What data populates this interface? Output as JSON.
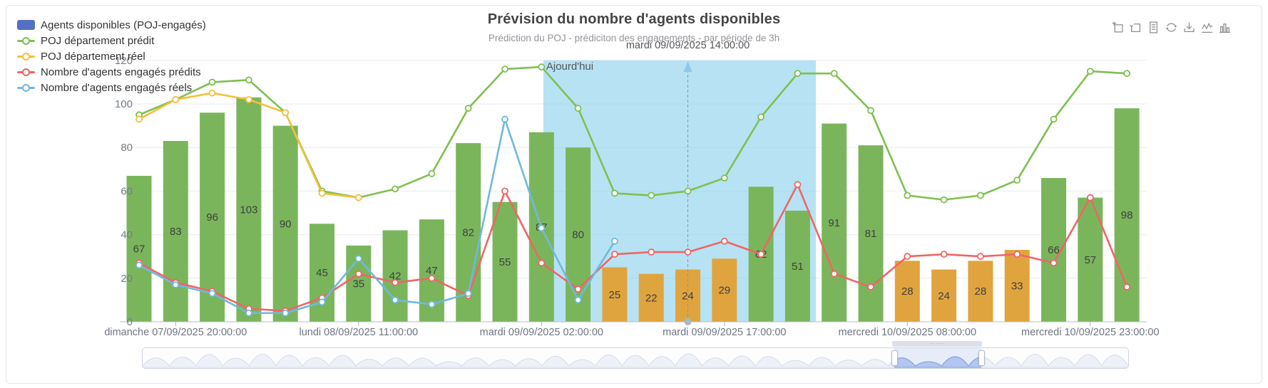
{
  "header": {
    "title": "Prévision du nombre d'agents disponibles",
    "subtitle": "Prédiction du POJ - prédiciton des engagements - par période de 3h"
  },
  "legend": {
    "items": [
      {
        "label": "Agents disponibles (POJ-engagés)",
        "marker": "rect",
        "color": "#5470c6"
      },
      {
        "label": "POJ département prédit",
        "marker": "line",
        "color": "#7ec050"
      },
      {
        "label": "POJ département réel",
        "marker": "line",
        "color": "#f3c13f"
      },
      {
        "label": "Nombre d'agents engagés prédits",
        "marker": "line",
        "color": "#ee6666"
      },
      {
        "label": "Nombre d'agents engagés réels",
        "marker": "line",
        "color": "#6fb9dd"
      }
    ]
  },
  "toolbox": {
    "icons": [
      "zoom-select",
      "zoom-reset",
      "data-view",
      "restore",
      "save-image",
      "switch-line",
      "switch-bar"
    ]
  },
  "chart_data": {
    "type": "mixed-bar-line",
    "n_slots": 28,
    "ylim": [
      0,
      120
    ],
    "y_ticks": [
      0,
      20,
      40,
      60,
      80,
      100,
      120
    ],
    "x_axis_ticks": [
      {
        "slot": 1,
        "label": "dimanche 07/09/2025 20:00:00"
      },
      {
        "slot": 6,
        "label": "lundi 08/09/2025 11:00:00"
      },
      {
        "slot": 11,
        "label": "mardi 09/09/2025 02:00:00"
      },
      {
        "slot": 16,
        "label": "mardi 09/09/2025 17:00:00"
      },
      {
        "slot": 21,
        "label": "mercredi 10/09/2025 08:00:00"
      },
      {
        "slot": 26,
        "label": "mercredi 10/09/2025 23:00:00"
      }
    ],
    "series": [
      {
        "name": "Agents disponibles (POJ-engagés)",
        "type": "bar",
        "values": [
          67,
          83,
          96,
          103,
          90,
          45,
          35,
          42,
          47,
          82,
          55,
          87,
          80,
          25,
          22,
          24,
          29,
          62,
          51,
          91,
          81,
          28,
          24,
          28,
          33,
          66,
          57,
          98
        ],
        "colors": {
          "default": "#7ab55c",
          "alt": "#e0a43e"
        },
        "alt_indices": [
          13,
          14,
          15,
          16,
          21,
          22,
          23,
          24
        ],
        "label_color": "#3f3f3f"
      },
      {
        "name": "POJ département prédit",
        "type": "line",
        "color": "#7ec050",
        "values": [
          95,
          102,
          110,
          111,
          96,
          60,
          57,
          61,
          68,
          98,
          116,
          117,
          98,
          59,
          58,
          60,
          66,
          94,
          114,
          114,
          97,
          58,
          56,
          58,
          65,
          93,
          115,
          114
        ]
      },
      {
        "name": "POJ département réel",
        "type": "line",
        "color": "#f3c13f",
        "values": [
          93,
          102,
          105,
          102,
          96,
          59,
          57
        ]
      },
      {
        "name": "Nombre d'agents engagés prédits",
        "type": "line",
        "color": "#ee6666",
        "values": [
          27,
          18,
          14,
          6,
          5,
          11,
          22,
          18,
          20,
          12,
          60,
          27,
          15,
          31,
          32,
          32,
          37,
          31,
          63,
          22,
          16,
          30,
          31,
          30,
          31,
          27,
          57,
          16
        ]
      },
      {
        "name": "Nombre d'agents engagés réels",
        "type": "line",
        "color": "#6fb9dd",
        "values": [
          26,
          17,
          13,
          4,
          4,
          9,
          29,
          10,
          8,
          13,
          93,
          43,
          10,
          37
        ]
      }
    ],
    "today_region": {
      "label": "Ajourd'hui",
      "from_slot": 11.05,
      "to_slot": 18.5,
      "color": "rgba(135,206,235,0.6)",
      "label_color": "#555555"
    },
    "now_line": {
      "slot": 15,
      "label": "mardi 09/09/2025 14:00:00",
      "line_color": "#8396a8",
      "arrow_color": "#8ec7ec",
      "base_color": "#a3b9cf"
    }
  },
  "slider": {
    "window_start_pct": 76.3,
    "window_end_pct": 85.1
  }
}
